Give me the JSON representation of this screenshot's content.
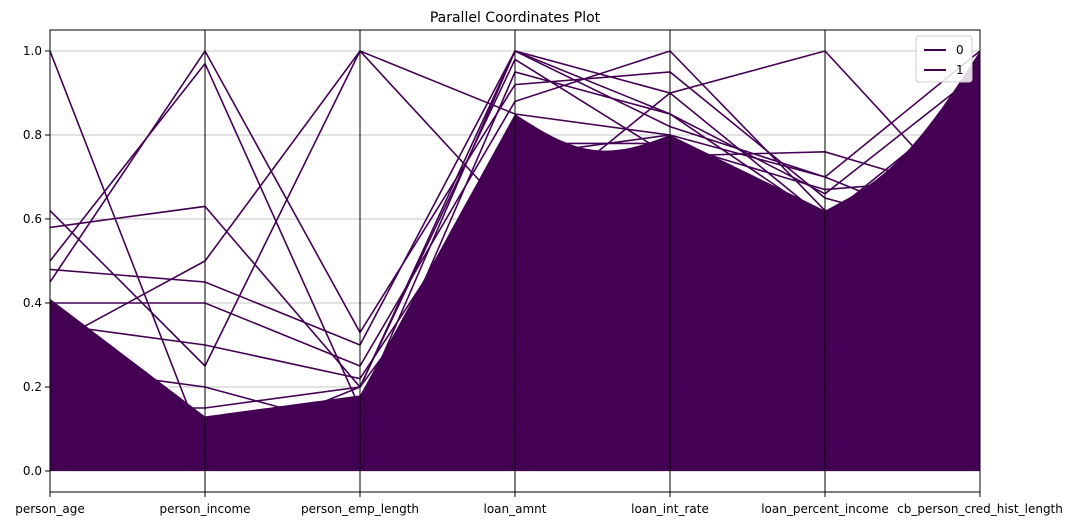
{
  "chart_data": {
    "type": "line",
    "subtype": "parallel-coordinates",
    "title": "Parallel Coordinates Plot",
    "categories": [
      "person_age",
      "person_income",
      "person_emp_length",
      "loan_amnt",
      "loan_int_rate",
      "loan_percent_income",
      "cb_person_cred_hist_length"
    ],
    "ylim": [
      -0.05,
      1.05
    ],
    "yticks": [
      "0.0",
      "0.2",
      "0.4",
      "0.6",
      "0.8",
      "1.0"
    ],
    "grid": "horizontal",
    "legend": {
      "placement": "top-right",
      "entries": [
        "0",
        "1"
      ]
    },
    "colors": {
      "class_0": "#440154",
      "class_1": "#440154",
      "axis": "#000000",
      "grid": "#b0b0b0"
    },
    "series": [
      {
        "name": "1",
        "values": [
          1.0,
          0.05,
          0.2,
          1.0,
          0.9,
          1.0,
          0.6
        ]
      },
      {
        "name": "1",
        "values": [
          0.62,
          0.25,
          1.0,
          0.85,
          0.8,
          0.7,
          0.55
        ]
      },
      {
        "name": "1",
        "values": [
          0.58,
          0.63,
          0.2,
          0.98,
          0.75,
          0.76,
          0.65
        ]
      },
      {
        "name": "1",
        "values": [
          0.5,
          0.97,
          0.15,
          1.0,
          0.85,
          0.6,
          0.9
        ]
      },
      {
        "name": "1",
        "values": [
          0.45,
          1.0,
          0.33,
          0.92,
          0.95,
          0.65,
          0.55
        ]
      },
      {
        "name": "1",
        "values": [
          0.48,
          0.45,
          0.3,
          1.0,
          0.82,
          0.7,
          1.0
        ]
      },
      {
        "name": "1",
        "values": [
          0.4,
          0.4,
          0.25,
          0.88,
          1.0,
          0.62,
          0.6
        ]
      },
      {
        "name": "1",
        "values": [
          0.35,
          0.3,
          0.22,
          0.78,
          0.78,
          0.67,
          0.7
        ]
      },
      {
        "name": "1",
        "values": [
          0.3,
          0.5,
          1.0,
          0.6,
          0.9,
          0.6,
          0.85
        ]
      },
      {
        "name": "1",
        "values": [
          0.25,
          0.2,
          0.1,
          0.95,
          0.85,
          0.66,
          0.95
        ]
      },
      {
        "name": "0",
        "values": [
          0.2,
          0.1,
          0.05,
          0.75,
          0.8,
          0.55,
          0.5
        ]
      },
      {
        "name": "0",
        "values": [
          0.15,
          0.15,
          0.2,
          0.7,
          0.7,
          0.6,
          0.4
        ]
      },
      {
        "name": "0",
        "values": [
          0.1,
          0.05,
          0.15,
          0.5,
          0.6,
          0.3,
          0.3
        ]
      },
      {
        "name": "0",
        "values": [
          0.05,
          0.08,
          0.1,
          0.3,
          0.4,
          0.2,
          0.1
        ]
      },
      {
        "name": "0",
        "values": [
          0.02,
          0.02,
          0.02,
          0.1,
          0.2,
          0.1,
          0.02
        ]
      },
      {
        "name": "0",
        "values": [
          0.12,
          0.12,
          0.08,
          0.2,
          0.5,
          0.05,
          0.2
        ]
      }
    ]
  }
}
